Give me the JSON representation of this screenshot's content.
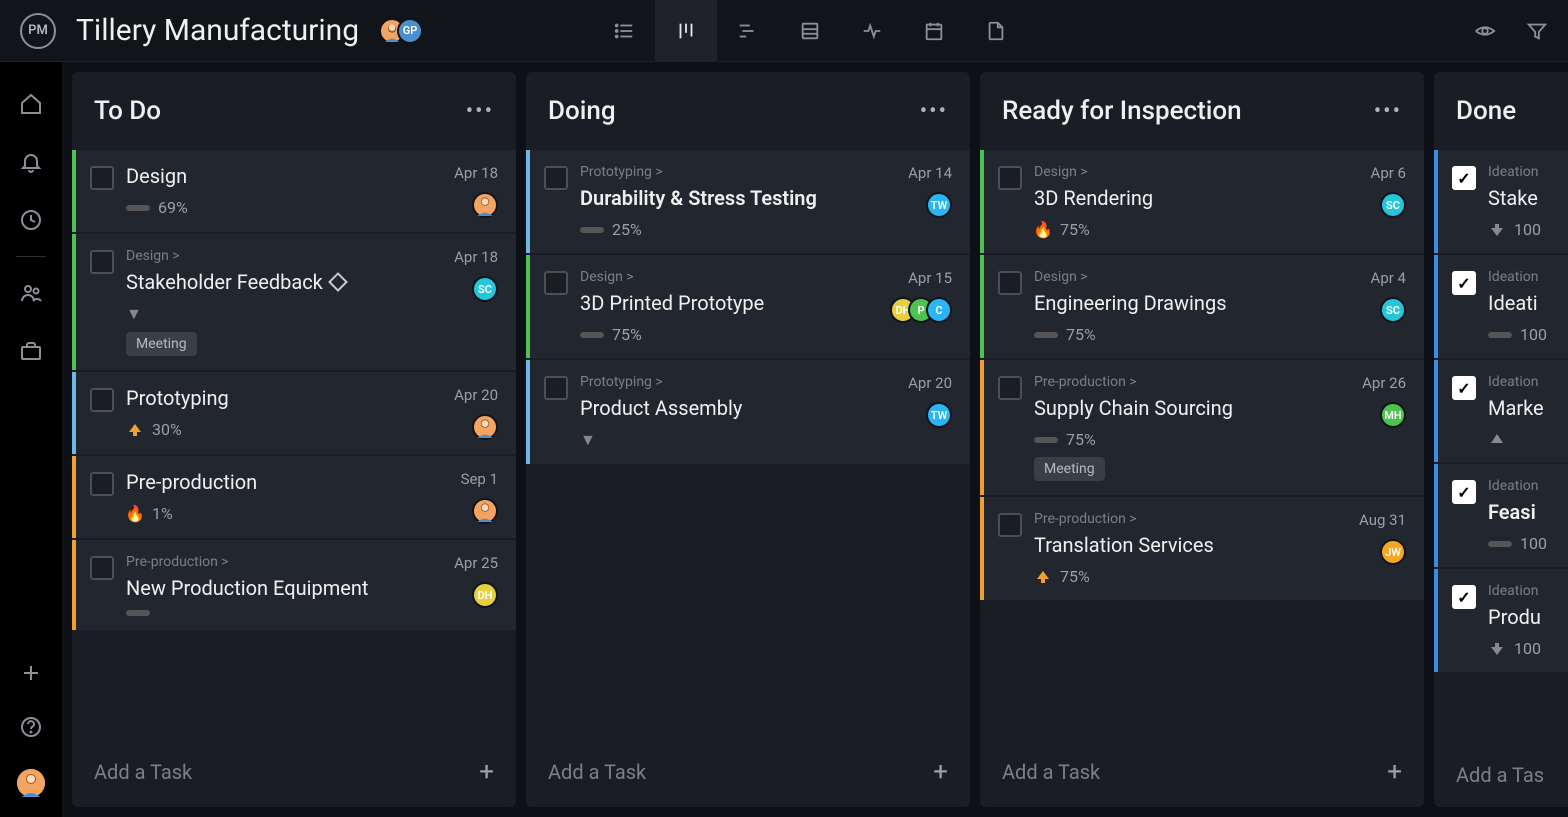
{
  "header": {
    "logo_text": "PM",
    "project_title": "Tillery Manufacturing",
    "project_avatars": [
      {
        "initials": "",
        "color": "#f4a460",
        "img": true
      },
      {
        "initials": "GP",
        "color": "#4a90d0"
      }
    ],
    "view_tabs": [
      "list",
      "board",
      "gantt",
      "sheet",
      "activity",
      "calendar",
      "files"
    ],
    "active_view_index": 1
  },
  "sidebar": {
    "items": [
      "home",
      "notifications",
      "recent",
      "team",
      "portfolio"
    ],
    "bottom": [
      "add",
      "help",
      "user"
    ]
  },
  "add_task_label": "Add a Task",
  "colors": {
    "av_orange": "#f4a460",
    "av_cyan": "#26c6da",
    "av_blue": "#29b6f6",
    "av_yellow": "#e6d040",
    "av_green": "#4ec24e",
    "av_jw": "#f5a623",
    "av_gp": "#4a90d0"
  },
  "columns": [
    {
      "title": "To Do",
      "tasks": [
        {
          "parent": "",
          "title": "Design",
          "progress": "69%",
          "date": "Apr 18",
          "stripe": "green",
          "checked": false,
          "prio": "bar",
          "avatars": [
            {
              "color": "#f4a460",
              "img": true
            }
          ]
        },
        {
          "parent": "Design >",
          "title": "Stakeholder Feedback",
          "milestone": true,
          "progress": "",
          "date": "Apr 18",
          "stripe": "green",
          "checked": false,
          "prio": "",
          "avatars": [
            {
              "initials": "SC",
              "color": "#26c6da"
            }
          ],
          "tag": "Meeting",
          "expand": true
        },
        {
          "parent": "",
          "title": "Prototyping",
          "progress": "30%",
          "date": "Apr 20",
          "stripe": "lblue",
          "checked": false,
          "prio": "up",
          "avatars": [
            {
              "color": "#f4a460",
              "img": true
            }
          ]
        },
        {
          "parent": "",
          "title": "Pre-production",
          "progress": "1%",
          "date": "Sep 1",
          "stripe": "orange",
          "checked": false,
          "prio": "fire",
          "avatars": [
            {
              "color": "#f4a460",
              "img": true
            }
          ]
        },
        {
          "parent": "Pre-production >",
          "title": "New Production Equipment",
          "progress": "",
          "date": "Apr 25",
          "stripe": "orange",
          "checked": false,
          "prio": "bar",
          "avatars": [
            {
              "initials": "DH",
              "color": "#e6d040"
            }
          ]
        }
      ]
    },
    {
      "title": "Doing",
      "tasks": [
        {
          "parent": "Prototyping >",
          "title": "Durability & Stress Testing",
          "bold": true,
          "progress": "25%",
          "date": "Apr 14",
          "stripe": "lblue",
          "checked": false,
          "prio": "bar",
          "avatars": [
            {
              "initials": "TW",
              "color": "#29b6f6"
            }
          ]
        },
        {
          "parent": "Design >",
          "title": "3D Printed Prototype",
          "progress": "75%",
          "date": "Apr 15",
          "stripe": "green",
          "checked": false,
          "prio": "bar",
          "avatars": [
            {
              "initials": "C",
              "color": "#29b6f6"
            },
            {
              "initials": "P",
              "color": "#4ec24e"
            },
            {
              "initials": "DH",
              "color": "#e6d040"
            }
          ]
        },
        {
          "parent": "Prototyping >",
          "title": "Product Assembly",
          "progress": "",
          "date": "Apr 20",
          "stripe": "lblue",
          "checked": false,
          "prio": "",
          "avatars": [
            {
              "initials": "TW",
              "color": "#29b6f6"
            }
          ],
          "expand": true
        }
      ]
    },
    {
      "title": "Ready for Inspection",
      "tasks": [
        {
          "parent": "Design >",
          "title": "3D Rendering",
          "progress": "75%",
          "date": "Apr 6",
          "stripe": "green",
          "checked": false,
          "prio": "fire",
          "avatars": [
            {
              "initials": "SC",
              "color": "#26c6da"
            }
          ]
        },
        {
          "parent": "Design >",
          "title": "Engineering Drawings",
          "progress": "75%",
          "date": "Apr 4",
          "stripe": "green",
          "checked": false,
          "prio": "bar",
          "avatars": [
            {
              "initials": "SC",
              "color": "#26c6da"
            }
          ]
        },
        {
          "parent": "Pre-production >",
          "title": "Supply Chain Sourcing",
          "progress": "75%",
          "date": "Apr 26",
          "stripe": "orange",
          "checked": false,
          "prio": "bar",
          "avatars": [
            {
              "initials": "MH",
              "color": "#4ec24e"
            }
          ],
          "tag": "Meeting"
        },
        {
          "parent": "Pre-production >",
          "title": "Translation Services",
          "progress": "75%",
          "date": "Aug 31",
          "stripe": "orange",
          "checked": false,
          "prio": "up",
          "avatars": [
            {
              "initials": "JW",
              "color": "#f5a623"
            }
          ]
        }
      ]
    },
    {
      "title": "Done",
      "partial": true,
      "tasks": [
        {
          "parent": "Ideation",
          "title": "Stake",
          "progress": "100",
          "stripe": "blue",
          "checked": true,
          "prio": "down"
        },
        {
          "parent": "Ideation",
          "title": "Ideati",
          "progress": "100",
          "stripe": "blue",
          "checked": true,
          "prio": "bar"
        },
        {
          "parent": "Ideation",
          "title": "Marke",
          "progress": "",
          "stripe": "blue",
          "checked": true,
          "prio": "upg"
        },
        {
          "parent": "Ideation",
          "title": "Feasi",
          "bold": true,
          "progress": "100",
          "stripe": "blue",
          "checked": true,
          "prio": "bar"
        },
        {
          "parent": "Ideation",
          "title": "Produ",
          "progress": "100",
          "stripe": "blue",
          "checked": true,
          "prio": "down"
        }
      ]
    }
  ]
}
